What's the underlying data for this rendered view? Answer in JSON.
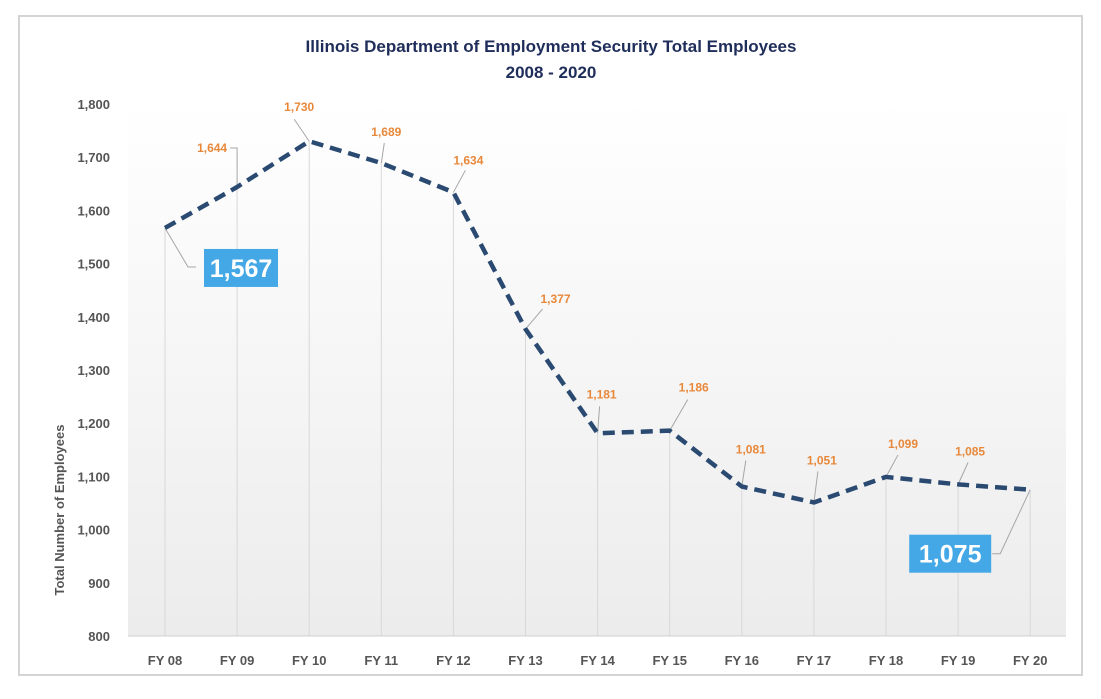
{
  "chart_data": {
    "type": "line",
    "title": "Illinois Department of Employment Security Total Employees",
    "subtitle": "2008 - 2020",
    "xlabel": "",
    "ylabel": "Total Number of Employees",
    "ylim": [
      800,
      1800
    ],
    "yticks": [
      800,
      900,
      1000,
      1100,
      1200,
      1300,
      1400,
      1500,
      1600,
      1700,
      1800
    ],
    "ytick_labels": [
      "800",
      "900",
      "1,000",
      "1,100",
      "1,200",
      "1,300",
      "1,400",
      "1,500",
      "1,600",
      "1,700",
      "1,800"
    ],
    "categories": [
      "FY 08",
      "FY 09",
      "FY 10",
      "FY 11",
      "FY 12",
      "FY 13",
      "FY 14",
      "FY 15",
      "FY 16",
      "FY 17",
      "FY 18",
      "FY 19",
      "FY 20"
    ],
    "series": [
      {
        "name": "Total Employees",
        "values": [
          1567,
          1644,
          1730,
          1689,
          1634,
          1377,
          1181,
          1186,
          1081,
          1051,
          1099,
          1085,
          1075
        ]
      }
    ],
    "data_labels": [
      "1,567",
      "1,644",
      "1,730",
      "1,689",
      "1,634",
      "1,377",
      "1,181",
      "1,186",
      "1,081",
      "1,051",
      "1,099",
      "1,085",
      "1,075"
    ],
    "highlighted_labels": [
      0,
      12
    ],
    "grid": "vertical",
    "legend": "none",
    "colors": {
      "line": "#2a4a72",
      "label": "#e8883a",
      "highlight_box": "#45a8e6",
      "title": "#1f2d5a",
      "axis_text": "#555555"
    }
  }
}
